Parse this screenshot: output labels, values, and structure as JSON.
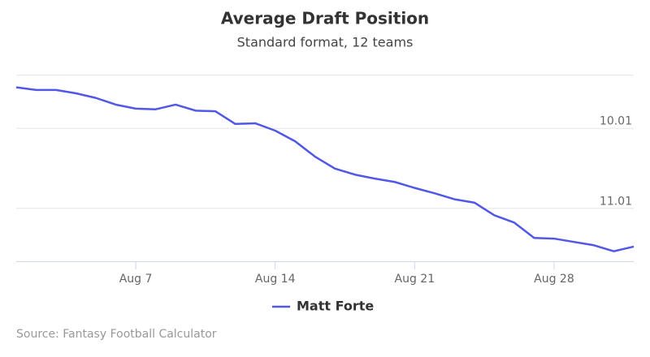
{
  "chart_data": {
    "type": "line",
    "title": "Average Draft Position",
    "subtitle": "Standard format, 12 teams",
    "source": "Source: Fantasy Football Calculator",
    "categories": [
      null,
      null,
      null,
      null,
      null,
      null,
      "Aug 7",
      null,
      null,
      null,
      null,
      null,
      null,
      "Aug 14",
      null,
      null,
      null,
      null,
      null,
      null,
      "Aug 21",
      null,
      null,
      null,
      null,
      null,
      null,
      "Aug 28",
      null,
      null,
      null,
      null
    ],
    "series": [
      {
        "name": "Matt Forte",
        "color": "#5157e6",
        "values": [
          102.9,
          103.3,
          103.3,
          103.8,
          104.5,
          105.5,
          106.1,
          106.2,
          105.5,
          106.4,
          106.5,
          108.4,
          108.3,
          109.4,
          111.0,
          113.3,
          115.1,
          116.0,
          116.6,
          117.1,
          118.0,
          118.8,
          119.7,
          120.2,
          122.1,
          123.2,
          125.5,
          125.6,
          126.1,
          126.6,
          127.5,
          126.8
        ]
      }
    ],
    "ylim": [
      101,
      129
    ],
    "y_reversed": true,
    "yticks": [
      {
        "value": 109,
        "label": "10.01"
      },
      {
        "value": 121,
        "label": "11.01"
      }
    ],
    "grid": true,
    "legend": "bottom"
  }
}
